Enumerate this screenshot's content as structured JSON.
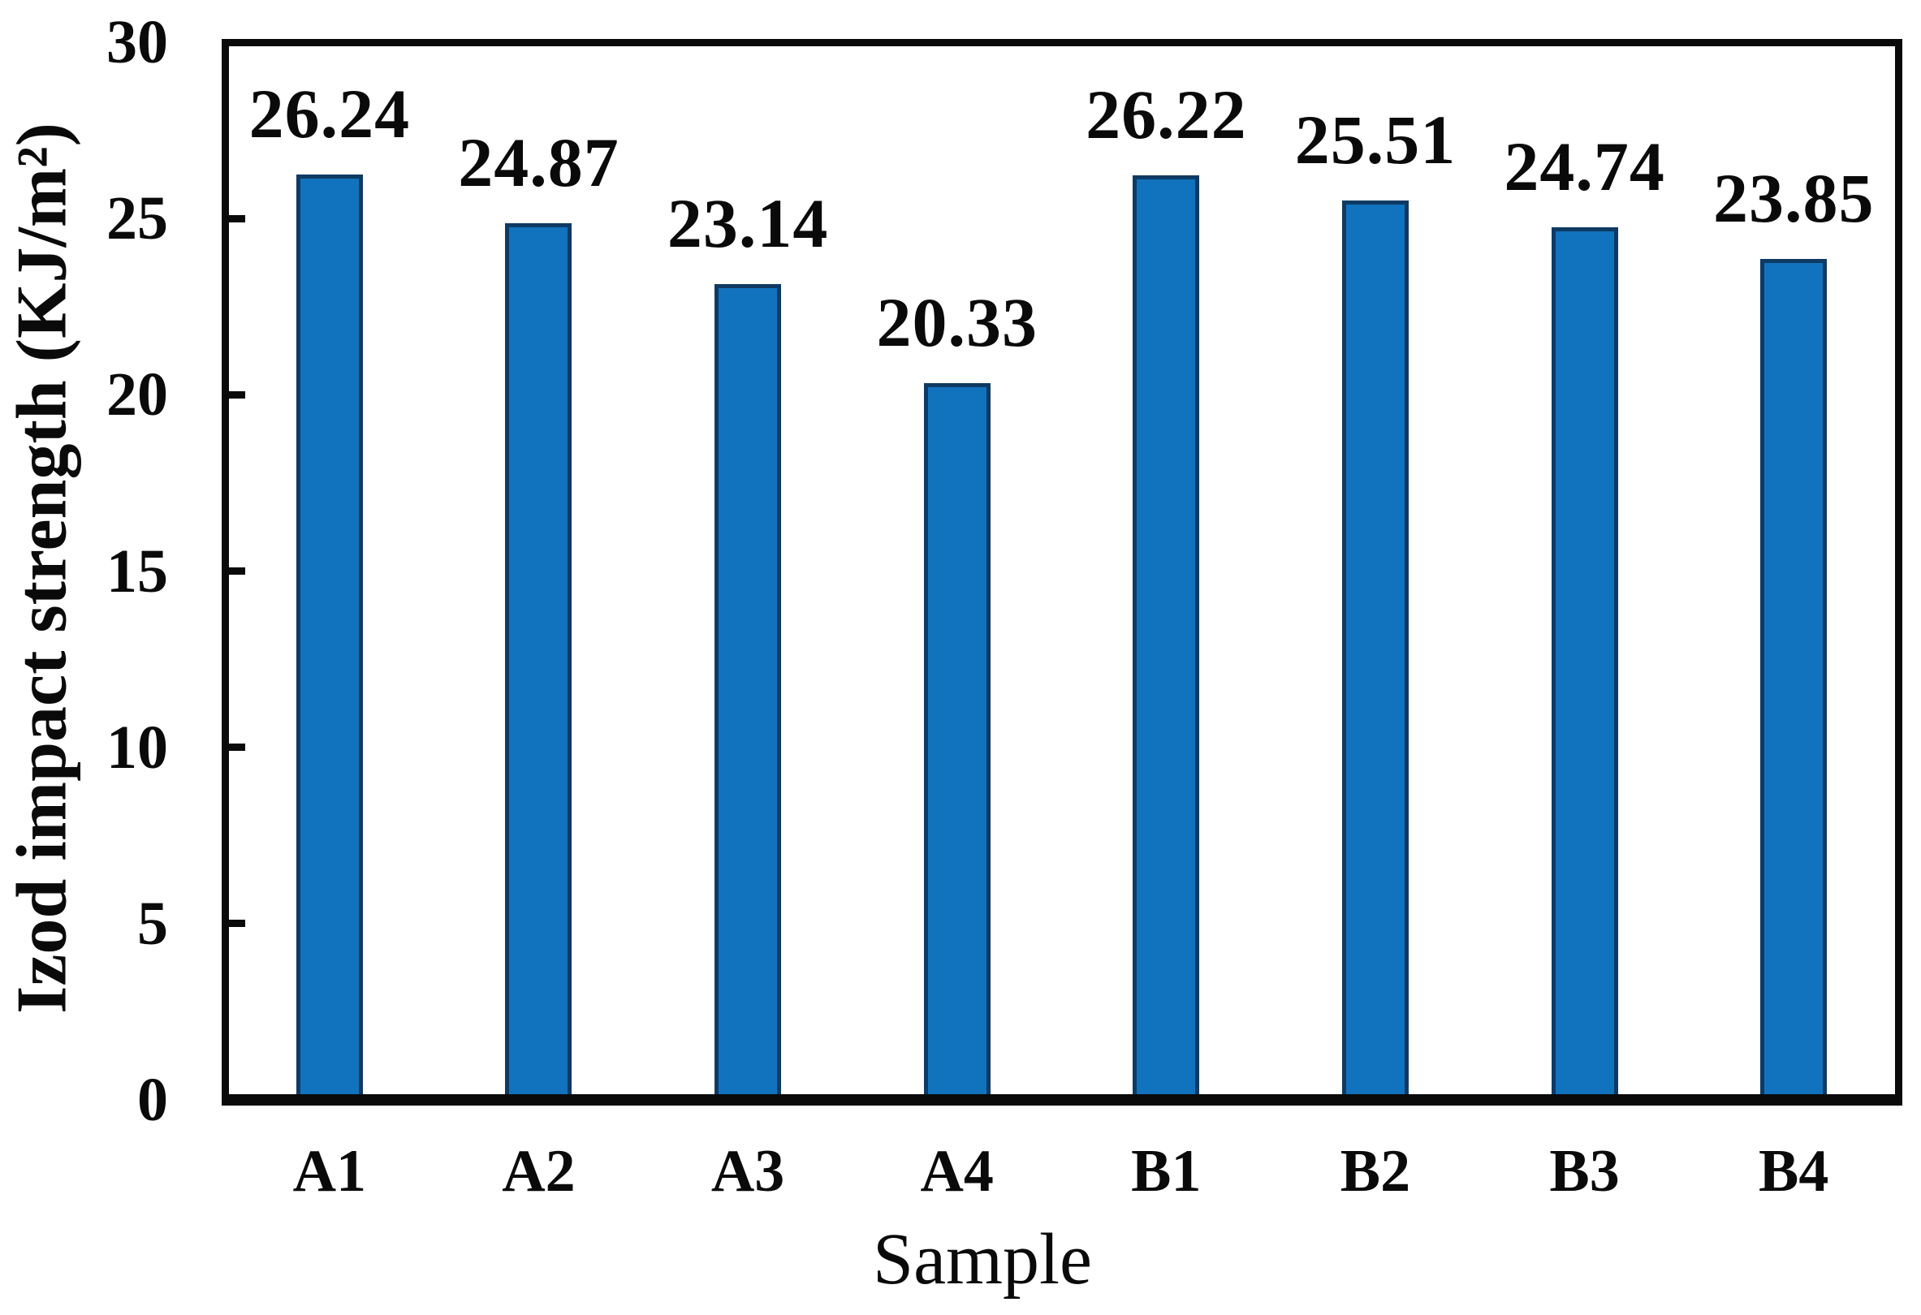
{
  "chart_data": {
    "type": "bar",
    "title": "",
    "xlabel": "Sample",
    "ylabel": "Izod impact strength (KJ/m²)",
    "categories": [
      "A1",
      "A2",
      "A3",
      "A4",
      "B1",
      "B2",
      "B3",
      "B4"
    ],
    "values": [
      26.24,
      24.87,
      23.14,
      20.33,
      26.22,
      25.51,
      24.74,
      23.85
    ],
    "labels": [
      "26.24",
      "24.87",
      "23.14",
      "20.33",
      "26.22",
      "25.51",
      "24.74",
      "23.85"
    ],
    "ylim": [
      0,
      30
    ],
    "yticks": [
      0,
      5,
      10,
      15,
      20,
      25,
      30
    ],
    "grid": false,
    "legend": null,
    "value_label_position": "above-bars",
    "tick_direction": "in",
    "bar_color": "#1173bd",
    "bar_border_color": "#0e3a63",
    "axis_color": "#0a0a0a",
    "text_color": "#0a0a0a",
    "background_color": "#ffffff"
  }
}
